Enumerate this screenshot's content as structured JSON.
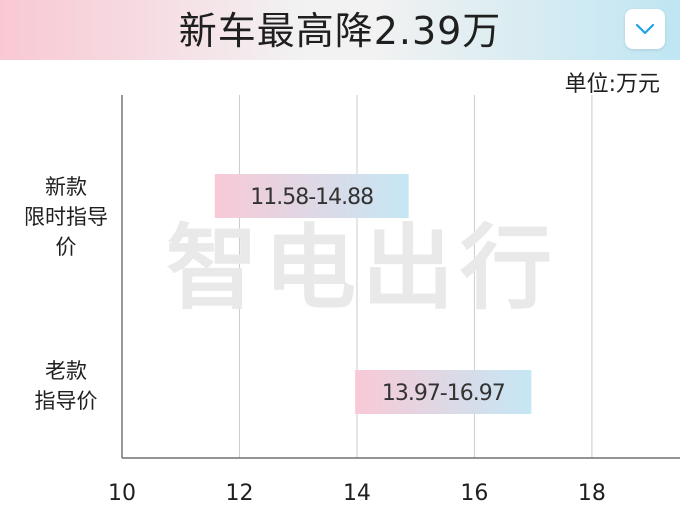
{
  "title": "新车最高降2.39万",
  "unit_label": "单位:万元",
  "watermark": "智电出行",
  "colors": {
    "gradient_pink": "#f9c8d4",
    "gradient_blue": "#bfe6f3",
    "bar_pink": "#f8c9d6",
    "bar_blue": "#c5e7f4",
    "axis": "#555555",
    "grid": "#cccccc",
    "watermark": "#e9e9e9"
  },
  "icons": {
    "menu": "chevron-down-icon"
  },
  "categories": [
    {
      "line1": "新款",
      "line2": "限时指导价"
    },
    {
      "line1": "老款",
      "line2": "指导价"
    }
  ],
  "chart_data": {
    "type": "bar",
    "orientation": "horizontal-range",
    "categories": [
      "新款限时指导价",
      "老款指导价"
    ],
    "ranges": [
      {
        "min": 11.58,
        "max": 14.88,
        "label": "11.58-14.88"
      },
      {
        "min": 13.97,
        "max": 16.97,
        "label": "13.97-16.97"
      }
    ],
    "xlim": [
      10,
      19.5
    ],
    "x_ticks": [
      10,
      12,
      14,
      16,
      18
    ],
    "x_tick_labels": [
      "10",
      "12",
      "14",
      "16",
      "18"
    ],
    "grid": true
  }
}
